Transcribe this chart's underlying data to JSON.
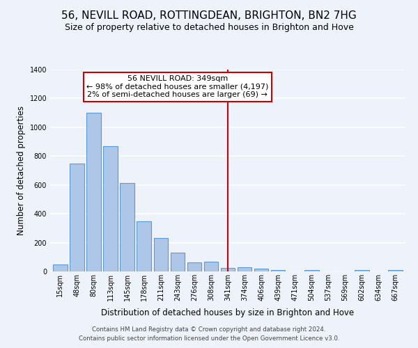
{
  "title": "56, NEVILL ROAD, ROTTINGDEAN, BRIGHTON, BN2 7HG",
  "subtitle": "Size of property relative to detached houses in Brighton and Hove",
  "xlabel": "Distribution of detached houses by size in Brighton and Hove",
  "ylabel": "Number of detached properties",
  "footnote1": "Contains HM Land Registry data © Crown copyright and database right 2024.",
  "footnote2": "Contains public sector information licensed under the Open Government Licence v3.0.",
  "categories": [
    "15sqm",
    "48sqm",
    "80sqm",
    "113sqm",
    "145sqm",
    "178sqm",
    "211sqm",
    "243sqm",
    "276sqm",
    "308sqm",
    "341sqm",
    "374sqm",
    "406sqm",
    "439sqm",
    "471sqm",
    "504sqm",
    "537sqm",
    "569sqm",
    "602sqm",
    "634sqm",
    "667sqm"
  ],
  "values": [
    50,
    750,
    1100,
    870,
    615,
    350,
    230,
    130,
    65,
    70,
    25,
    30,
    20,
    10,
    0,
    10,
    0,
    0,
    10,
    0,
    10
  ],
  "bar_color": "#aec6e8",
  "bar_edge_color": "#5b9bd5",
  "vline_x_index": 10,
  "vline_color": "#cc0000",
  "annotation_title": "56 NEVILL ROAD: 349sqm",
  "annotation_line1": "← 98% of detached houses are smaller (4,197)",
  "annotation_line2": "2% of semi-detached houses are larger (69) →",
  "annotation_box_color": "#cc0000",
  "ylim": [
    0,
    1400
  ],
  "background_color": "#eef2fb",
  "grid_color": "#ffffff",
  "title_fontsize": 11,
  "subtitle_fontsize": 9,
  "axis_label_fontsize": 8.5,
  "tick_fontsize": 7,
  "annotation_fontsize": 8
}
